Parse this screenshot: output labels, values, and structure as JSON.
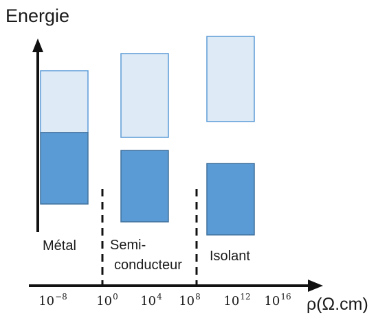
{
  "title": "Energie",
  "x_axis_label": "ρ(Ω.cm)",
  "categories": {
    "metal": "Métal",
    "semi_line1": "Semi-",
    "semi_line2": "conducteur",
    "isolant": "Isolant"
  },
  "ticks": [
    {
      "base": "10",
      "exp": "−8"
    },
    {
      "base": "10",
      "exp": "0"
    },
    {
      "base": "10",
      "exp": "4"
    },
    {
      "base": "10",
      "exp": "8"
    },
    {
      "base": "10",
      "exp": "12"
    },
    {
      "base": "10",
      "exp": "16"
    }
  ],
  "colors": {
    "band_light_fill": "#deebf7",
    "band_light_stroke": "#5b9bd5",
    "band_dark_fill": "#5b9bd5",
    "band_dark_stroke": "#41719c",
    "axis": "#111111"
  }
}
